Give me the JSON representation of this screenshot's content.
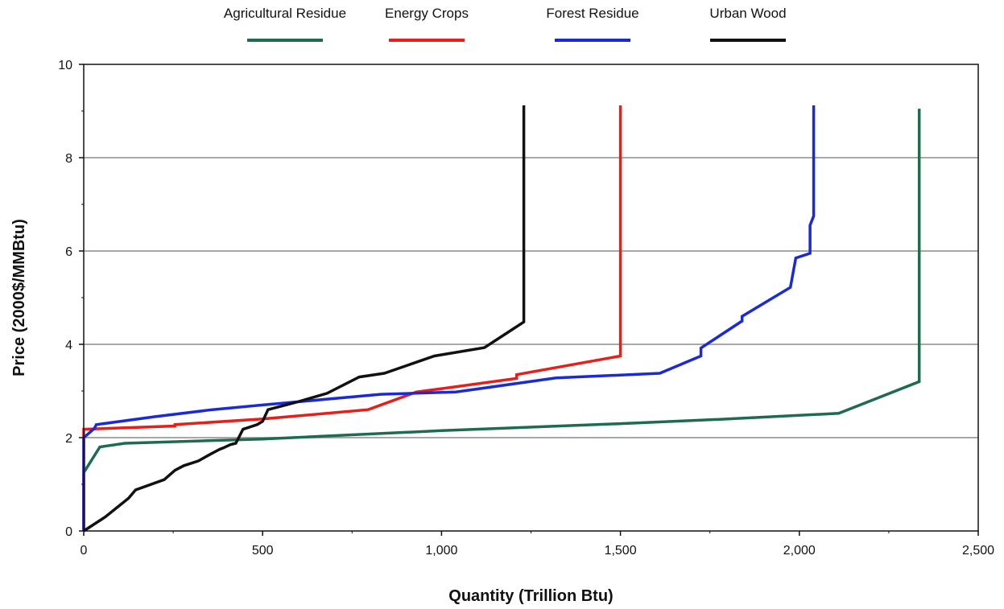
{
  "chart_data": {
    "type": "line",
    "xlabel": "Quantity (Trillion Btu)",
    "ylabel": "Price (2000$/MMBtu)",
    "xlim": [
      0,
      2500
    ],
    "ylim": [
      0,
      10
    ],
    "x_ticks": [
      0,
      500,
      1000,
      1500,
      2000,
      2500
    ],
    "x_tick_labels": [
      "0",
      "500",
      "1,000",
      "1,500",
      "2,000",
      "2,500"
    ],
    "y_ticks": [
      0,
      2,
      4,
      6,
      8,
      10
    ],
    "y_tick_labels": [
      "0",
      "2",
      "4",
      "6",
      "8",
      "10"
    ],
    "grid": "horizontal",
    "legend_position": "top",
    "series": [
      {
        "name": "Agricultural Residue",
        "color": "#1e6b4e",
        "points": [
          [
            0,
            0
          ],
          [
            0,
            1.25
          ],
          [
            45,
            1.8
          ],
          [
            115,
            1.88
          ],
          [
            500,
            1.97
          ],
          [
            1000,
            2.15
          ],
          [
            1500,
            2.3
          ],
          [
            1800,
            2.4
          ],
          [
            2110,
            2.52
          ],
          [
            2335,
            3.2
          ],
          [
            2335,
            9.05
          ]
        ]
      },
      {
        "name": "Energy Crops",
        "color": "#e3201b",
        "points": [
          [
            0,
            0
          ],
          [
            0,
            2.18
          ],
          [
            255,
            2.25
          ],
          [
            255,
            2.28
          ],
          [
            500,
            2.4
          ],
          [
            795,
            2.6
          ],
          [
            930,
            2.98
          ],
          [
            1000,
            3.05
          ],
          [
            1210,
            3.27
          ],
          [
            1210,
            3.35
          ],
          [
            1500,
            3.75
          ],
          [
            1500,
            9.12
          ]
        ]
      },
      {
        "name": "Forest Residue",
        "color": "#1c2ad6",
        "points": [
          [
            0,
            0
          ],
          [
            0,
            2.0
          ],
          [
            30,
            2.2
          ],
          [
            35,
            2.28
          ],
          [
            200,
            2.45
          ],
          [
            360,
            2.6
          ],
          [
            500,
            2.7
          ],
          [
            830,
            2.93
          ],
          [
            1040,
            2.98
          ],
          [
            1320,
            3.28
          ],
          [
            1610,
            3.38
          ],
          [
            1725,
            3.75
          ],
          [
            1725,
            3.92
          ],
          [
            1840,
            4.5
          ],
          [
            1840,
            4.6
          ],
          [
            1975,
            5.22
          ],
          [
            1990,
            5.85
          ],
          [
            2030,
            5.95
          ],
          [
            2030,
            6.55
          ],
          [
            2040,
            6.75
          ],
          [
            2040,
            9.12
          ]
        ]
      },
      {
        "name": "Urban Wood",
        "color": "#111111",
        "points": [
          [
            0,
            0
          ],
          [
            60,
            0.3
          ],
          [
            125,
            0.7
          ],
          [
            145,
            0.88
          ],
          [
            225,
            1.1
          ],
          [
            255,
            1.3
          ],
          [
            280,
            1.4
          ],
          [
            320,
            1.5
          ],
          [
            355,
            1.65
          ],
          [
            380,
            1.75
          ],
          [
            390,
            1.78
          ],
          [
            410,
            1.85
          ],
          [
            425,
            1.88
          ],
          [
            445,
            2.18
          ],
          [
            485,
            2.28
          ],
          [
            500,
            2.35
          ],
          [
            515,
            2.6
          ],
          [
            590,
            2.75
          ],
          [
            680,
            2.95
          ],
          [
            770,
            3.3
          ],
          [
            840,
            3.38
          ],
          [
            980,
            3.75
          ],
          [
            1120,
            3.93
          ],
          [
            1230,
            4.48
          ],
          [
            1230,
            9.12
          ]
        ]
      }
    ]
  }
}
